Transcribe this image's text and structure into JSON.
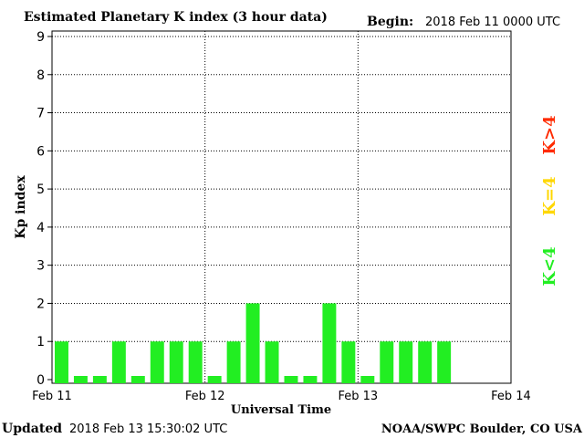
{
  "header": {
    "title": "Estimated Planetary K index (3 hour data)",
    "begin_label": "Begin:",
    "begin_value": "2018 Feb 11 0000 UTC"
  },
  "footer": {
    "updated_label": "Updated",
    "updated_value": "2018 Feb 13 15:30:02 UTC",
    "source": "NOAA/SWPC Boulder, CO USA"
  },
  "legend": {
    "items": [
      {
        "label": "K>4",
        "color": "#ff2a00"
      },
      {
        "label": "K=4",
        "color": "#ffd700"
      },
      {
        "label": "K<4",
        "color": "#22ee22"
      }
    ]
  },
  "chart_data": {
    "type": "bar",
    "ylabel": "Kp index",
    "xlabel": "Universal Time",
    "ylim": [
      0,
      9
    ],
    "yticks": [
      0,
      1,
      2,
      3,
      4,
      5,
      6,
      7,
      8,
      9
    ],
    "xlim": [
      0,
      72
    ],
    "xticks": [
      {
        "label": "Feb 11",
        "hour": 0
      },
      {
        "label": "Feb 12",
        "hour": 24
      },
      {
        "label": "Feb 13",
        "hour": 48
      },
      {
        "label": "Feb 14",
        "hour": 72
      }
    ],
    "bar_hours": 3,
    "bar_color": "#22ee22",
    "values": [
      1,
      0,
      0,
      1,
      0,
      1,
      1,
      1,
      0,
      1,
      2,
      1,
      0,
      0,
      2,
      1,
      0,
      1,
      1,
      1,
      1
    ],
    "grid": "dotted"
  }
}
